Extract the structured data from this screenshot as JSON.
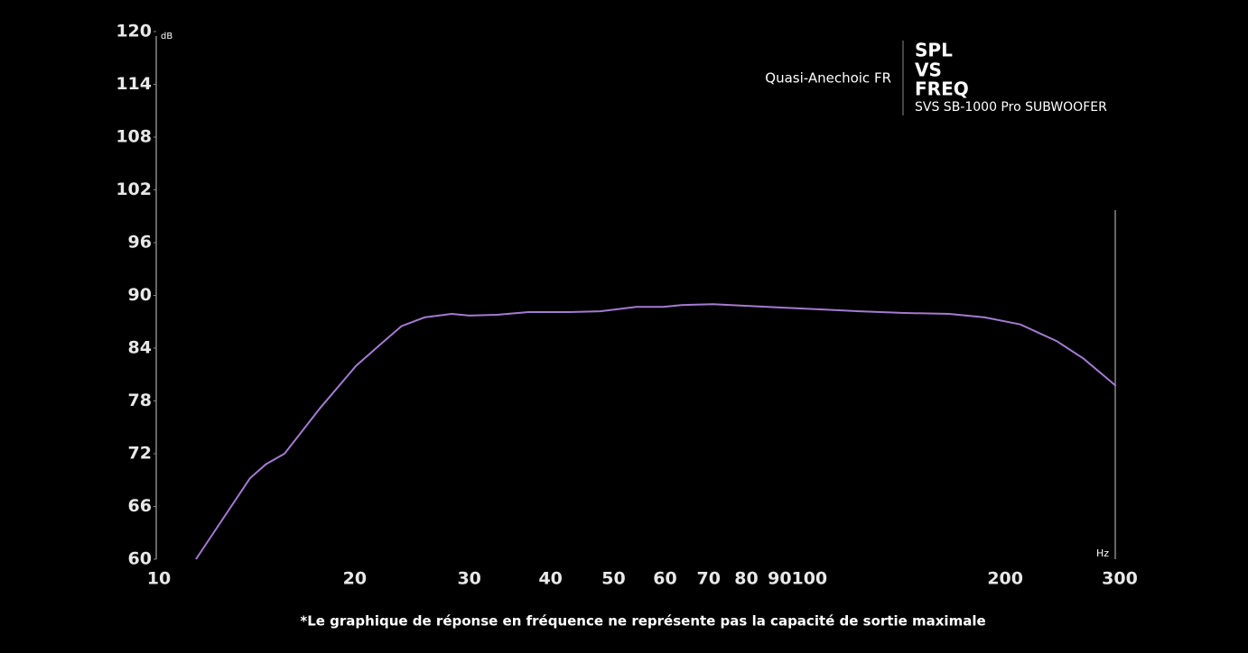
{
  "chart_data": {
    "type": "line",
    "title": [
      "SPL",
      "VS",
      "FREQ"
    ],
    "subtitle": "SVS SB-1000 Pro SUBWOOFER",
    "y_unit": "dB",
    "x_unit": "Hz",
    "footnote": "*Le graphique de réponse en fréquence ne représente pas la capacité de sortie maximale",
    "x": [
      11.4,
      13.8,
      14.6,
      15.6,
      17.7,
      20.1,
      21.8,
      23.6,
      25.6,
      28.2,
      30,
      33.1,
      37,
      42.6,
      47.7,
      54.2,
      59.6,
      63.6,
      71.1,
      80.8,
      92,
      104.8,
      119.4,
      139.9,
      164,
      186,
      211,
      240,
      264,
      296
    ],
    "series": [
      {
        "name": "Quasi-Anechoic FR",
        "color": "#a27bd0",
        "values": [
          60,
          69.2,
          70.8,
          72,
          77.2,
          82,
          84.3,
          86.5,
          87.5,
          87.9,
          87.7,
          87.8,
          88.1,
          88.1,
          88.2,
          88.7,
          88.7,
          88.9,
          89,
          88.8,
          88.6,
          88.4,
          88.2,
          88,
          87.9,
          87.5,
          86.7,
          84.8,
          82.8,
          79.7
        ]
      }
    ],
    "xlog": true,
    "xlim": [
      10,
      300
    ],
    "xticks": [
      10,
      20,
      30,
      40,
      50,
      60,
      70,
      80,
      90,
      100,
      200,
      300
    ],
    "ylim": [
      60,
      120
    ],
    "yticks": [
      60,
      66,
      72,
      78,
      84,
      90,
      96,
      102,
      108,
      114,
      120
    ],
    "grid": false
  }
}
